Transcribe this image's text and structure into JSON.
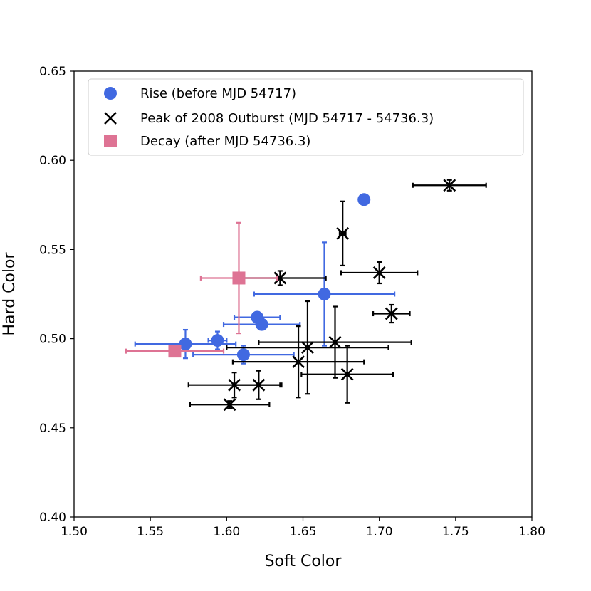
{
  "chart_data": {
    "type": "scatter",
    "title": "",
    "xlabel": "Soft Color",
    "ylabel": "Hard Color",
    "xlim": [
      1.5,
      1.8
    ],
    "ylim": [
      0.4,
      0.65
    ],
    "xticks": [
      "1.50",
      "1.55",
      "1.60",
      "1.65",
      "1.70",
      "1.75",
      "1.80"
    ],
    "yticks": [
      "0.40",
      "0.45",
      "0.50",
      "0.55",
      "0.60",
      "0.65"
    ],
    "grid": false,
    "legend_position": "upper-left",
    "series": [
      {
        "name": "Rise (before MJD 54717)",
        "marker": "circle",
        "color": "#4169e1",
        "points": [
          {
            "x": 1.69,
            "y": 0.578,
            "xerr": 0.003,
            "yerr": 0.002
          },
          {
            "x": 1.664,
            "y": 0.525,
            "xerr": 0.046,
            "yerr": 0.029
          },
          {
            "x": 1.62,
            "y": 0.512,
            "xerr": 0.015,
            "yerr": 0.003
          },
          {
            "x": 1.623,
            "y": 0.508,
            "xerr": 0.025,
            "yerr": 0.003
          },
          {
            "x": 1.594,
            "y": 0.499,
            "xerr": 0.006,
            "yerr": 0.005
          },
          {
            "x": 1.573,
            "y": 0.497,
            "xerr": 0.033,
            "yerr": 0.008
          },
          {
            "x": 1.611,
            "y": 0.491,
            "xerr": 0.033,
            "yerr": 0.005
          }
        ]
      },
      {
        "name": "Peak of 2008 Outburst (MJD 54717 - 54736.3)",
        "marker": "x",
        "color": "#000000",
        "points": [
          {
            "x": 1.746,
            "y": 0.586,
            "xerr": 0.024,
            "yerr": 0.003
          },
          {
            "x": 1.676,
            "y": 0.559,
            "xerr": 0.002,
            "yerr": 0.018
          },
          {
            "x": 1.635,
            "y": 0.534,
            "xerr": 0.03,
            "yerr": 0.004
          },
          {
            "x": 1.7,
            "y": 0.537,
            "xerr": 0.025,
            "yerr": 0.006
          },
          {
            "x": 1.708,
            "y": 0.514,
            "xerr": 0.012,
            "yerr": 0.005
          },
          {
            "x": 1.671,
            "y": 0.498,
            "xerr": 0.05,
            "yerr": 0.02
          },
          {
            "x": 1.653,
            "y": 0.495,
            "xerr": 0.053,
            "yerr": 0.026
          },
          {
            "x": 1.647,
            "y": 0.487,
            "xerr": 0.043,
            "yerr": 0.02
          },
          {
            "x": 1.679,
            "y": 0.48,
            "xerr": 0.03,
            "yerr": 0.016
          },
          {
            "x": 1.605,
            "y": 0.474,
            "xerr": 0.03,
            "yerr": 0.007
          },
          {
            "x": 1.621,
            "y": 0.474,
            "xerr": 0.015,
            "yerr": 0.008
          },
          {
            "x": 1.602,
            "y": 0.463,
            "xerr": 0.026,
            "yerr": 0.002
          }
        ]
      },
      {
        "name": "Decay (after MJD 54736.3)",
        "marker": "square",
        "color": "#de7394",
        "points": [
          {
            "x": 1.608,
            "y": 0.534,
            "xerr": 0.025,
            "yerr": 0.031
          },
          {
            "x": 1.566,
            "y": 0.493,
            "xerr": 0.032,
            "yerr": 0.002
          }
        ]
      }
    ]
  }
}
